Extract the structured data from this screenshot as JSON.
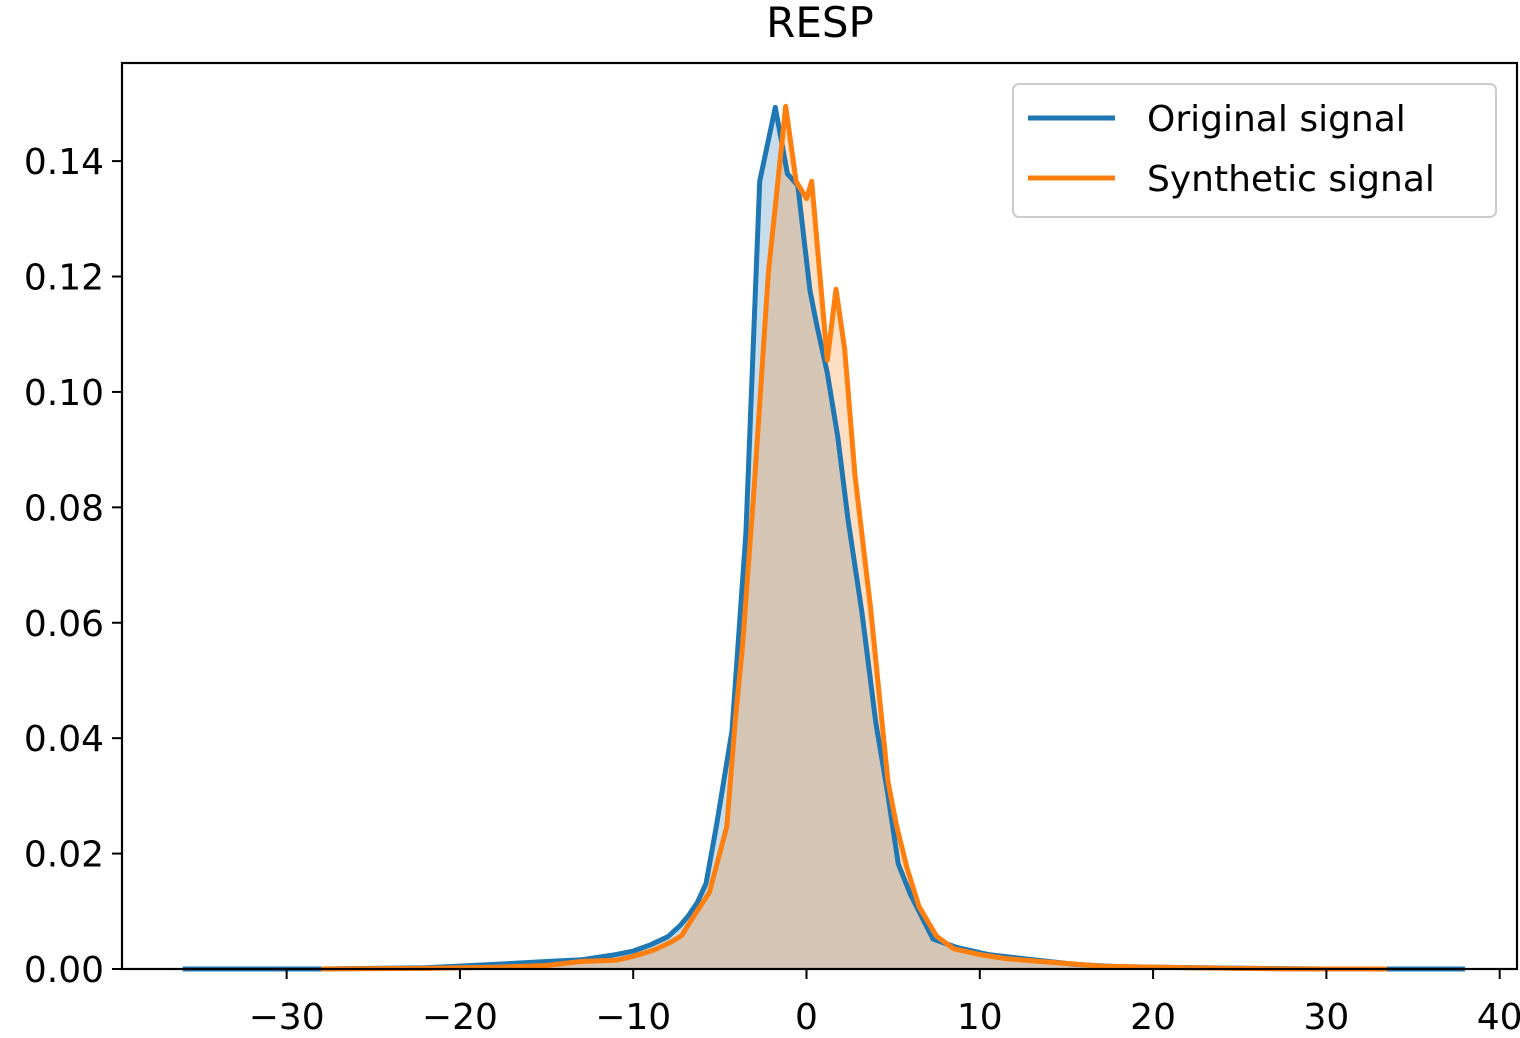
{
  "chart_data": {
    "type": "area",
    "title": "RESP",
    "xlabel": "",
    "ylabel": "",
    "xlim": [
      -39.5,
      41
    ],
    "ylim": [
      0,
      0.157
    ],
    "xticks": [
      -30,
      -20,
      -10,
      0,
      10,
      20,
      30,
      40
    ],
    "xtick_labels": [
      "−30",
      "−20",
      "−10",
      "0",
      "10",
      "20",
      "30",
      "40"
    ],
    "yticks": [
      0.0,
      0.02,
      0.04,
      0.06,
      0.08,
      0.1,
      0.12,
      0.14
    ],
    "ytick_labels": [
      "0.00",
      "0.02",
      "0.04",
      "0.06",
      "0.08",
      "0.10",
      "0.12",
      "0.14"
    ],
    "grid": false,
    "legend_position": "top-right",
    "series": [
      {
        "name": "Original signal",
        "color": "#1f77b4",
        "fill": "#1f77b4",
        "x": [
          -36,
          -28,
          -22,
          -18,
          -15,
          -13,
          -11,
          -10,
          -9,
          -8,
          -7.3,
          -6.8,
          -6.3,
          -5.8,
          -5.2,
          -4.3,
          -3.5,
          -2.7,
          -1.8,
          -1.1,
          -0.5,
          0.2,
          0.6,
          1.2,
          1.8,
          2.4,
          3.2,
          4,
          4.7,
          5.3,
          6,
          7.3,
          8.7,
          10.5,
          12.5,
          15.5,
          18,
          23,
          30,
          38
        ],
        "y": [
          0.0,
          0.0,
          0.0002,
          0.0008,
          0.0013,
          0.0016,
          0.0025,
          0.0031,
          0.0042,
          0.0056,
          0.0075,
          0.0093,
          0.0115,
          0.0148,
          0.0248,
          0.0413,
          0.0755,
          0.1365,
          0.1493,
          0.1378,
          0.1358,
          0.1175,
          0.1115,
          0.1033,
          0.0923,
          0.0778,
          0.0617,
          0.0427,
          0.0301,
          0.0182,
          0.0129,
          0.0052,
          0.0037,
          0.0025,
          0.0018,
          0.0008,
          0.0004,
          0.0002,
          0.0,
          0.0
        ]
      },
      {
        "name": "Synthetic signal",
        "color": "#ff7f0e",
        "fill": "#ff7f0e",
        "x": [
          -28,
          -22,
          -18,
          -15,
          -13,
          -11,
          -10,
          -8.8,
          -7.8,
          -7.2,
          -6.6,
          -5.6,
          -4.6,
          -4.1,
          -3.7,
          -3,
          -2.2,
          -1.2,
          -0.6,
          0,
          0.3,
          1.2,
          1.7,
          2.2,
          2.8,
          3.7,
          4.3,
          4.7,
          5.2,
          5.8,
          6.5,
          7.5,
          8.5,
          10.0,
          11.5,
          13.5,
          17,
          22,
          28,
          33.5
        ],
        "y": [
          0.0,
          0.0001,
          0.0003,
          0.0006,
          0.0013,
          0.0015,
          0.0022,
          0.0033,
          0.0047,
          0.0058,
          0.0087,
          0.0133,
          0.0247,
          0.0435,
          0.0557,
          0.0843,
          0.1207,
          0.1495,
          0.1365,
          0.1335,
          0.1365,
          0.1055,
          0.1178,
          0.1075,
          0.0855,
          0.0625,
          0.0445,
          0.0325,
          0.0248,
          0.0175,
          0.0108,
          0.0057,
          0.0035,
          0.0025,
          0.0018,
          0.0013,
          0.0005,
          0.0002,
          0.0,
          0.0
        ]
      }
    ]
  }
}
